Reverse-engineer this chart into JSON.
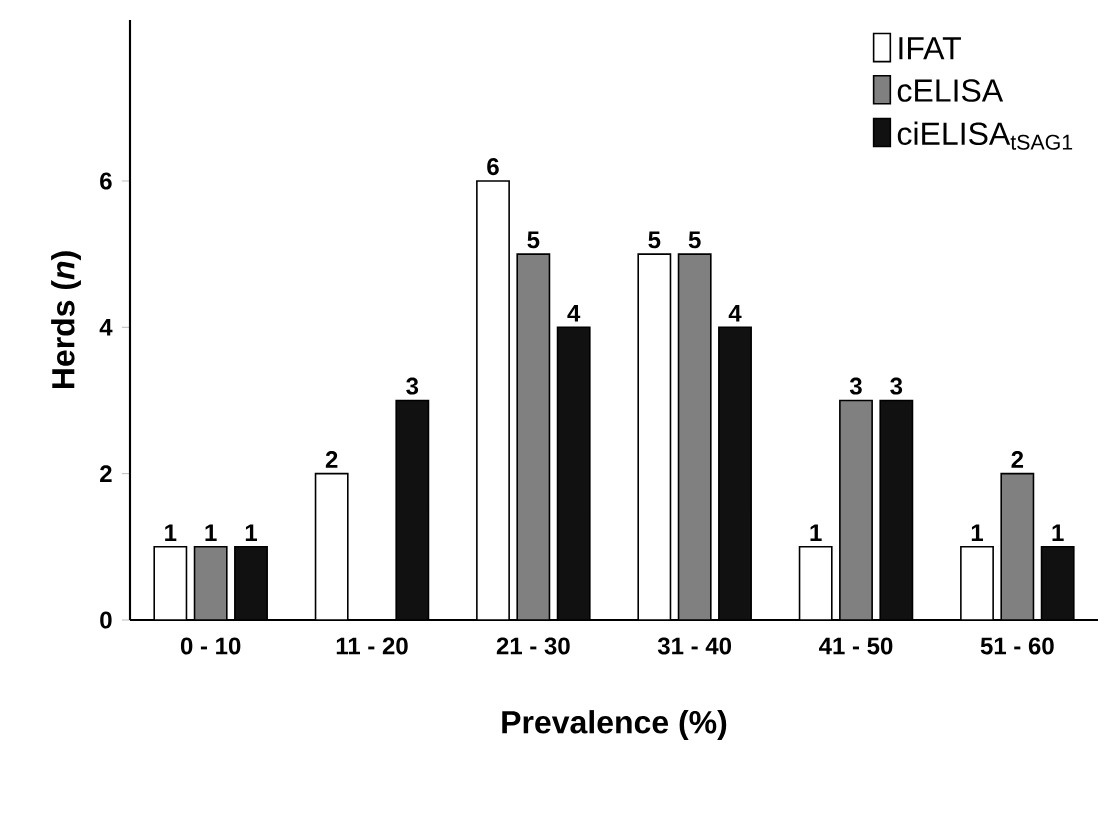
{
  "chart_data": {
    "type": "bar",
    "xlabel": "Prevalence (%)",
    "ylabel": "Herds (*n*)",
    "categories": [
      "0 - 10",
      "11 - 20",
      "21 - 30",
      "31 - 40",
      "41 - 50",
      "51 - 60"
    ],
    "series": [
      {
        "name": "IFAT",
        "color": "#ffffff",
        "values": [
          1,
          2,
          6,
          5,
          1,
          1
        ],
        "value_labels": [
          "1",
          "2",
          "6",
          "5",
          "1",
          "1"
        ]
      },
      {
        "name": "cELISA",
        "color": "#808080",
        "values": [
          1,
          null,
          5,
          5,
          3,
          2
        ],
        "value_labels": [
          "1",
          null,
          "5",
          "5",
          "3",
          "2"
        ]
      },
      {
        "name": "ciELISA$_{tSAG1}$",
        "color": "#111111",
        "values": [
          1,
          3,
          4,
          4,
          3,
          1
        ],
        "value_labels": [
          "1",
          "3",
          "4",
          "4",
          "3",
          "1"
        ]
      }
    ],
    "ylim": [
      0,
      8.2
    ],
    "yticks": [
      0,
      2,
      4,
      6
    ],
    "legend": "top right"
  }
}
